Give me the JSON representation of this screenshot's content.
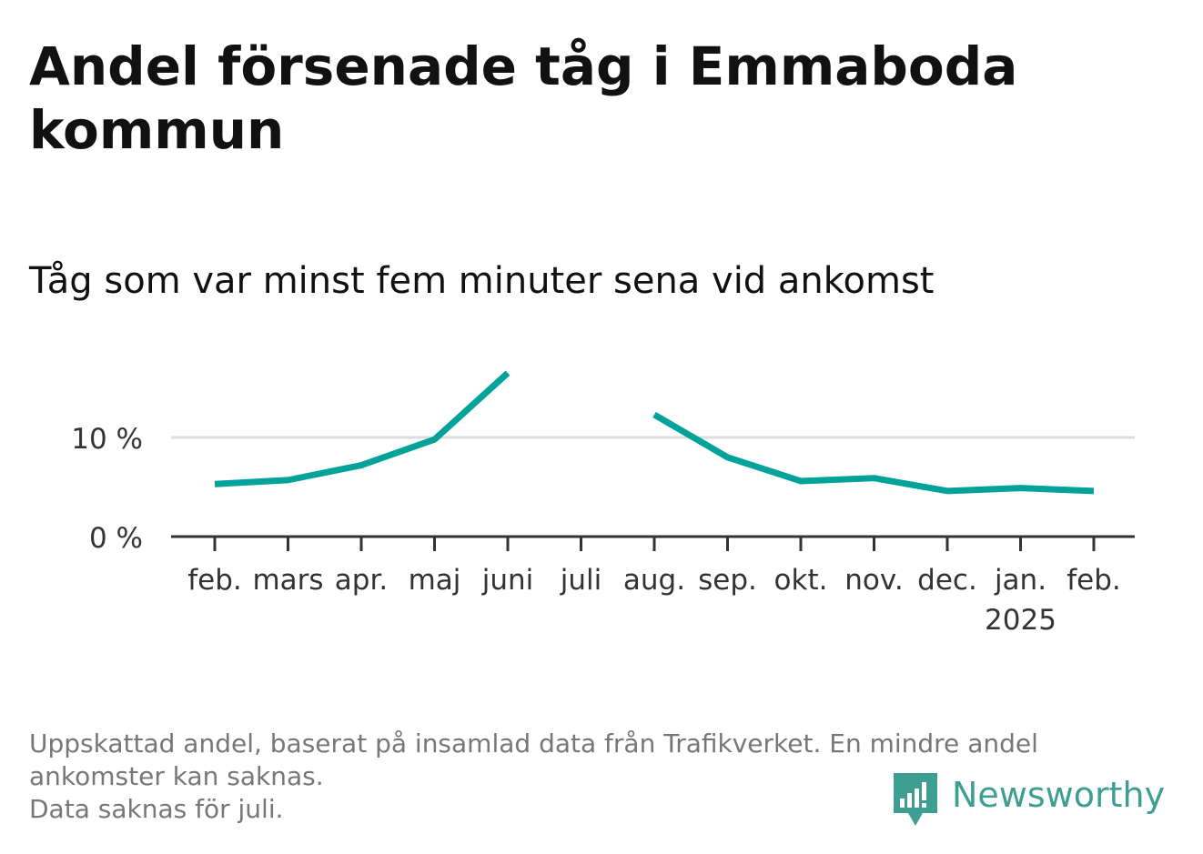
{
  "title": "Andel försenade tåg i Emmaboda kommun",
  "subtitle": "Tåg som var minst fem minuter sena vid ankomst",
  "footnote": {
    "line1": "Uppskattad andel, baserat på insamlad data från Trafikverket. En mindre andel",
    "line2": "ankomster kan saknas.",
    "line3": "Data saknas för juli."
  },
  "brand": {
    "name": "Newsworthy",
    "color": "#3f9e92",
    "icon": "newsworthy-logo-icon"
  },
  "colors": {
    "line": "#00a299",
    "grid": "#dddddd",
    "axis": "#333333"
  },
  "chart_data": {
    "type": "line",
    "x": [
      "feb.",
      "mars",
      "apr.",
      "maj",
      "juni",
      "juli",
      "aug.",
      "sep.",
      "okt.",
      "nov.",
      "dec.",
      "jan.",
      "feb."
    ],
    "x_sublabels": [
      "",
      "",
      "",
      "",
      "",
      "",
      "",
      "",
      "",
      "",
      "",
      "2025",
      ""
    ],
    "series": [
      {
        "values": [
          5.3,
          5.7,
          7.2,
          9.8,
          16.5,
          null,
          12.3,
          8.0,
          5.6,
          5.9,
          4.6,
          4.9,
          4.6
        ]
      }
    ],
    "yticks": [
      {
        "value": 0,
        "label": "0 %"
      },
      {
        "value": 10,
        "label": "10 %"
      }
    ],
    "ylim": [
      0,
      20
    ],
    "grid": true,
    "legend": "none"
  }
}
